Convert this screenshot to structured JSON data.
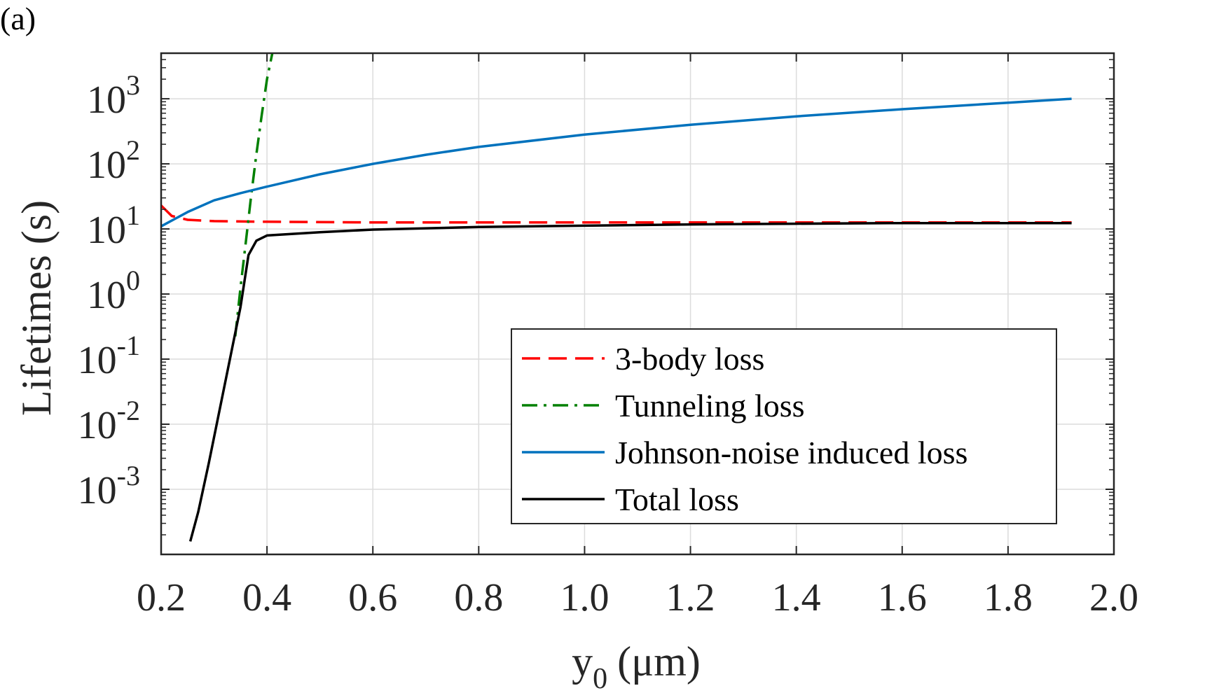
{
  "panel_label": "(a)",
  "chart_data": {
    "type": "line",
    "yscale": "log",
    "xlabel": {
      "main": "y",
      "sub": "0",
      "unit": "(μm)"
    },
    "ylabel": "Lifetimes (s)",
    "xlim": [
      0.2,
      2.0
    ],
    "ylim_exponent": [
      -4,
      3.7
    ],
    "xticks": [
      "0.2",
      "0.4",
      "0.6",
      "0.8",
      "1.0",
      "1.2",
      "1.4",
      "1.6",
      "1.8",
      "2.0"
    ],
    "xtick_values": [
      0.2,
      0.4,
      0.6,
      0.8,
      1.0,
      1.2,
      1.4,
      1.6,
      1.8,
      2.0
    ],
    "yticks": [
      {
        "base": "10",
        "exp": "3",
        "value": 3
      },
      {
        "base": "10",
        "exp": "2",
        "value": 2
      },
      {
        "base": "10",
        "exp": "1",
        "value": 1
      },
      {
        "base": "10",
        "exp": "0",
        "value": 0
      },
      {
        "base": "10",
        "exp": "-1",
        "value": -1
      },
      {
        "base": "10",
        "exp": "-2",
        "value": -2
      },
      {
        "base": "10",
        "exp": "-3",
        "value": -3
      }
    ],
    "grid": true,
    "legend_position": "bottom-right",
    "series": [
      {
        "name": "3-body loss",
        "color": "#ff0000",
        "style": "dashed",
        "log10_values": [
          [
            0.2,
            1.36
          ],
          [
            0.22,
            1.2
          ],
          [
            0.25,
            1.14
          ],
          [
            0.3,
            1.12
          ],
          [
            0.4,
            1.11
          ],
          [
            0.6,
            1.1
          ],
          [
            0.8,
            1.1
          ],
          [
            1.0,
            1.1
          ],
          [
            1.2,
            1.1
          ],
          [
            1.4,
            1.1
          ],
          [
            1.6,
            1.1
          ],
          [
            1.8,
            1.1
          ],
          [
            1.92,
            1.1
          ]
        ]
      },
      {
        "name": "Tunneling loss",
        "color": "#008000",
        "style": "dashdot",
        "log10_values": [
          [
            0.34,
            -0.65
          ],
          [
            0.35,
            0.1
          ],
          [
            0.36,
            0.8
          ],
          [
            0.37,
            1.5
          ],
          [
            0.38,
            2.15
          ],
          [
            0.39,
            2.75
          ],
          [
            0.4,
            3.3
          ],
          [
            0.41,
            3.7
          ]
        ]
      },
      {
        "name": "Johnson-noise induced loss",
        "color": "#0072bd",
        "style": "solid",
        "log10_values": [
          [
            0.2,
            1.04
          ],
          [
            0.25,
            1.26
          ],
          [
            0.3,
            1.44
          ],
          [
            0.35,
            1.55
          ],
          [
            0.4,
            1.65
          ],
          [
            0.5,
            1.84
          ],
          [
            0.6,
            2.0
          ],
          [
            0.7,
            2.14
          ],
          [
            0.8,
            2.26
          ],
          [
            1.0,
            2.45
          ],
          [
            1.2,
            2.6
          ],
          [
            1.4,
            2.73
          ],
          [
            1.6,
            2.84
          ],
          [
            1.8,
            2.94
          ],
          [
            1.92,
            3.0
          ]
        ]
      },
      {
        "name": "Total loss",
        "color": "#000000",
        "style": "solid",
        "log10_values": [
          [
            0.255,
            -3.8
          ],
          [
            0.27,
            -3.35
          ],
          [
            0.29,
            -2.6
          ],
          [
            0.31,
            -1.8
          ],
          [
            0.33,
            -1.0
          ],
          [
            0.35,
            -0.2
          ],
          [
            0.365,
            0.6
          ],
          [
            0.38,
            0.82
          ],
          [
            0.4,
            0.9
          ],
          [
            0.5,
            0.95
          ],
          [
            0.6,
            0.99
          ],
          [
            0.8,
            1.03
          ],
          [
            1.0,
            1.05
          ],
          [
            1.2,
            1.07
          ],
          [
            1.4,
            1.08
          ],
          [
            1.6,
            1.09
          ],
          [
            1.8,
            1.09
          ],
          [
            1.92,
            1.09
          ]
        ]
      }
    ]
  }
}
